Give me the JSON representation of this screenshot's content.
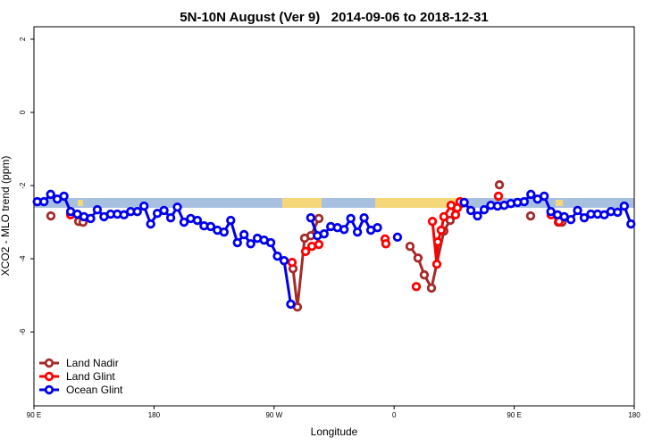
{
  "chart_data": {
    "type": "line",
    "title": "5N-10N August (Ver 9)   2014-09-06 to 2018-12-31",
    "x_label": "Longitude",
    "y_label": "XCO2 - MLO trend (ppm)",
    "xlim": [
      90,
      540
    ],
    "ylim": [
      -8.02,
      2.34
    ],
    "xticks": [
      {
        "value": 90,
        "label": "90 E"
      },
      {
        "value": 180,
        "label": "180"
      },
      {
        "value": 270,
        "label": "90 W"
      },
      {
        "value": 360,
        "label": "0"
      },
      {
        "value": 450,
        "label": "90 E"
      },
      {
        "value": 540,
        "label": "180"
      }
    ],
    "yticks": [
      2,
      0,
      -2,
      -4,
      -6
    ],
    "legend": "bottom-left",
    "series": [
      {
        "name": "Land Nadir",
        "color": "#a52a2a",
        "x": [
          102.7,
          null,
          123.5,
          126.8,
          null,
          284.2,
          287.5,
          292.9,
          297.6,
          303.6,
          null,
          371.9,
          377.9,
          382.6,
          388.0,
          397.3,
          402.0,
          410.1,
          null,
          438.9,
          null,
          462.3,
          null,
          483.1,
          485.8
        ],
        "values": [
          -2.83,
          null,
          -2.98,
          -3.0,
          null,
          -4.27,
          -5.32,
          -3.44,
          -3.37,
          -2.9,
          null,
          -3.66,
          -3.98,
          -4.44,
          -4.8,
          -3.24,
          -2.95,
          -2.49,
          null,
          -1.98,
          null,
          -2.83,
          null,
          -3.0,
          -3.0
        ]
      },
      {
        "name": "Land Glint",
        "color": "#ff0000",
        "x": [
          117.5,
          null,
          283.5,
          null,
          293.6,
          298.3,
          303.6,
          null,
          353.2,
          353.8,
          null,
          376.6,
          null,
          388.7,
          392.0,
          392.7,
          395.3,
          397.3,
          402.7,
          406.0,
          407.4,
          409.4,
          null,
          438.2,
          null,
          477.7,
          483.7
        ],
        "values": [
          -2.8,
          null,
          -4.1,
          null,
          -3.8,
          -3.66,
          -3.61,
          null,
          -3.46,
          -3.59,
          null,
          -4.76,
          null,
          -2.98,
          -4.15,
          -3.54,
          -3.22,
          -2.85,
          -2.54,
          -2.8,
          -2.61,
          -2.44,
          null,
          -2.29,
          null,
          -2.8,
          -2.98
        ]
      },
      {
        "name": "Ocean Glint",
        "color": "#0000ee",
        "x": [
          92.5,
          97.5,
          102.5,
          107.5,
          112.5,
          117.5,
          122.5,
          127.5,
          132.5,
          137.5,
          142.5,
          147.5,
          152.5,
          157.5,
          162.5,
          167.5,
          172.5,
          177.5,
          182.5,
          187.5,
          192.5,
          197.5,
          202.5,
          207.5,
          212.5,
          217.5,
          222.5,
          227.5,
          232.5,
          237.5,
          242.5,
          247.5,
          252.5,
          257.5,
          262.5,
          267.5,
          272.5,
          277.5,
          282.5,
          null,
          297.5,
          302.5,
          307.5,
          312.5,
          317.5,
          322.5,
          327.5,
          332.5,
          337.5,
          342.5,
          347.5,
          null,
          362.5,
          null,
          412.5,
          417.5,
          422.5,
          427.5,
          432.5,
          437.5,
          442.5,
          447.5,
          452.5,
          457.5,
          462.5,
          467.5,
          472.5,
          477.5,
          482.5,
          487.5,
          492.5,
          497.5,
          502.5,
          507.5,
          512.5,
          517.5,
          522.5,
          527.5,
          532.5,
          537.5
        ],
        "values": [
          -2.44,
          -2.44,
          -2.24,
          -2.37,
          -2.29,
          -2.71,
          -2.78,
          -2.85,
          -2.9,
          -2.66,
          -2.85,
          -2.78,
          -2.78,
          -2.8,
          -2.71,
          -2.71,
          -2.56,
          -3.05,
          -2.76,
          -2.68,
          -2.88,
          -2.59,
          -3.0,
          -2.9,
          -2.95,
          -3.1,
          -3.12,
          -3.22,
          -3.27,
          -2.95,
          -3.56,
          -3.34,
          -3.59,
          -3.44,
          -3.49,
          -3.56,
          -3.93,
          -4.05,
          -5.24,
          null,
          -2.88,
          -3.37,
          -3.32,
          -3.12,
          -3.15,
          -3.2,
          -2.9,
          -3.27,
          -2.88,
          -3.22,
          -3.15,
          null,
          -3.41,
          null,
          -2.46,
          -2.68,
          -2.83,
          -2.66,
          -2.54,
          -2.56,
          -2.54,
          -2.49,
          -2.46,
          -2.44,
          -2.24,
          -2.37,
          -2.29,
          -2.71,
          -2.8,
          -2.85,
          -2.93,
          -2.68,
          -2.88,
          -2.78,
          -2.78,
          -2.8,
          -2.71,
          -2.73,
          -2.56,
          -3.05
        ]
      }
    ]
  }
}
